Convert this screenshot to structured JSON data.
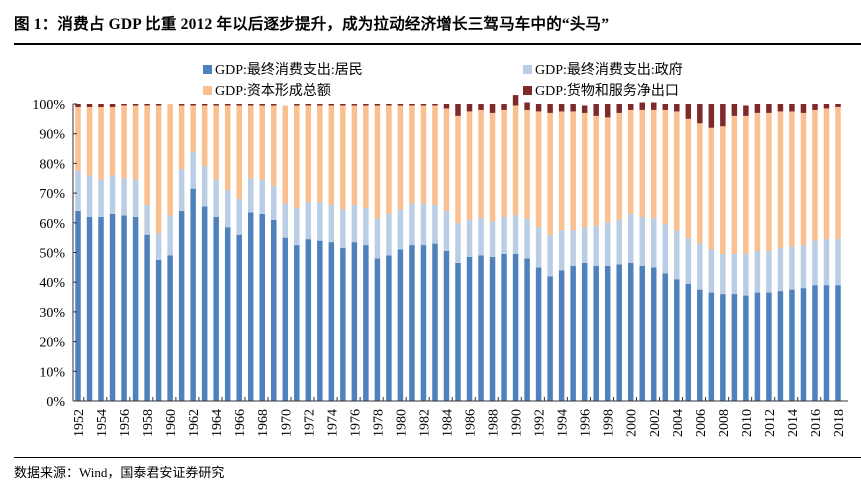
{
  "title": "图 1：消费占 GDP 比重 2012 年以后逐步提升，成为拉动经济增长三驾马车中的“头马”",
  "footer": "数据来源：Wind，国泰君安证券研究",
  "chart_data": {
    "type": "bar",
    "stacked": true,
    "title": "",
    "xlabel": "",
    "ylabel": "",
    "ylim": [
      0,
      100
    ],
    "yticks": [
      "0%",
      "10%",
      "20%",
      "30%",
      "40%",
      "50%",
      "60%",
      "70%",
      "80%",
      "90%",
      "100%"
    ],
    "grid": false,
    "legend_position": "top",
    "x": [
      1952,
      1953,
      1954,
      1955,
      1956,
      1957,
      1958,
      1959,
      1960,
      1961,
      1962,
      1963,
      1964,
      1965,
      1966,
      1967,
      1968,
      1969,
      1970,
      1971,
      1972,
      1973,
      1974,
      1975,
      1976,
      1977,
      1978,
      1979,
      1980,
      1981,
      1982,
      1983,
      1984,
      1985,
      1986,
      1987,
      1988,
      1989,
      1990,
      1991,
      1992,
      1993,
      1994,
      1995,
      1996,
      1997,
      1998,
      1999,
      2000,
      2001,
      2002,
      2003,
      2004,
      2005,
      2006,
      2007,
      2008,
      2009,
      2010,
      2011,
      2012,
      2013,
      2014,
      2015,
      2016,
      2017,
      2018
    ],
    "xtick_labels": [
      "1952",
      "1954",
      "1956",
      "1958",
      "1960",
      "1962",
      "1964",
      "1966",
      "1968",
      "1970",
      "1972",
      "1974",
      "1976",
      "1978",
      "1980",
      "1982",
      "1984",
      "1986",
      "1988",
      "1990",
      "1992",
      "1994",
      "1996",
      "1998",
      "2000",
      "2002",
      "2004",
      "2006",
      "2008",
      "2010",
      "2012",
      "2014",
      "2016",
      "2018"
    ],
    "series": [
      {
        "name": "GDP:最终消费支出:居民",
        "color": "#4f81bd",
        "values": [
          64,
          62,
          62,
          63,
          62.5,
          62,
          56,
          47.5,
          49,
          64,
          71.5,
          65.5,
          62,
          58.5,
          56,
          63.5,
          63,
          61,
          55,
          52.5,
          54.5,
          54,
          53.5,
          51.5,
          53.5,
          52.5,
          48,
          49,
          51,
          52.5,
          52.5,
          53,
          50.5,
          46.5,
          48.5,
          49,
          48.5,
          49.5,
          49.5,
          48,
          45,
          42,
          44,
          45.5,
          46.5,
          45.5,
          45.5,
          46,
          46.5,
          45.5,
          45,
          43,
          41,
          39.5,
          37.5,
          36.5,
          36,
          36,
          35.5,
          36.5,
          36.5,
          37,
          37.5,
          38,
          39,
          39,
          39
        ]
      },
      {
        "name": "GDP:最终消费支出:政府",
        "color": "#b9cde5",
        "values": [
          13.5,
          14,
          12.5,
          13,
          12.5,
          12.5,
          10,
          9,
          13.5,
          14,
          12.5,
          13.5,
          12.5,
          12.5,
          12,
          11.5,
          11.5,
          11.5,
          11.5,
          12.5,
          12.5,
          13,
          12.5,
          13,
          12.5,
          12.5,
          13.5,
          14,
          13.5,
          14,
          14,
          13,
          13.5,
          13.5,
          12.5,
          12.5,
          12,
          12.5,
          13,
          13.5,
          13.5,
          14,
          13.5,
          12,
          12,
          13.5,
          14.5,
          15,
          16.5,
          16.5,
          16.5,
          16.5,
          16.5,
          15.5,
          15.5,
          14.5,
          13.5,
          13.5,
          14,
          14,
          14,
          14.5,
          14.5,
          14.5,
          15,
          15.5,
          15.5
        ]
      },
      {
        "name": "GDP:资本形成总额",
        "color": "#fac090",
        "values": [
          21.5,
          23,
          24.5,
          23,
          24.5,
          25,
          33.5,
          43,
          37.5,
          21.5,
          15.5,
          20.5,
          25,
          28.5,
          31.5,
          24.5,
          25,
          27,
          33,
          34.5,
          32.5,
          32.5,
          33.5,
          35,
          33.5,
          34.5,
          38,
          36.5,
          35,
          33,
          33,
          33.5,
          34.5,
          36,
          36.5,
          36.5,
          36.5,
          36,
          37,
          36.5,
          39,
          41,
          40,
          40,
          38.5,
          37,
          35.5,
          36,
          35,
          36,
          36.5,
          38.5,
          40,
          40,
          40.5,
          41,
          43,
          46.5,
          46.5,
          46.5,
          46.5,
          46,
          45.5,
          44.5,
          44,
          44,
          44.5
        ]
      },
      {
        "name": "GDP:货物和服务净出口",
        "color": "#7f2a2a",
        "values": [
          1,
          1,
          1,
          1,
          0.5,
          0.5,
          0.5,
          0.5,
          0,
          0.5,
          0.5,
          0.5,
          0.5,
          0.5,
          0.5,
          0.5,
          0.5,
          0.5,
          0,
          0.5,
          0.5,
          0.5,
          0.5,
          0.5,
          0.5,
          0.5,
          0.5,
          0.5,
          0.5,
          0.5,
          0.5,
          0.5,
          1.5,
          4,
          2.5,
          2,
          3,
          2,
          3.5,
          2.5,
          2.5,
          3,
          2.5,
          2.5,
          2.5,
          4,
          4.5,
          3,
          2,
          2.5,
          2.5,
          2,
          2.5,
          5,
          6.5,
          8,
          7.5,
          4,
          3.5,
          3,
          3,
          2.5,
          2.5,
          3,
          2,
          1.5,
          1
        ]
      }
    ]
  }
}
